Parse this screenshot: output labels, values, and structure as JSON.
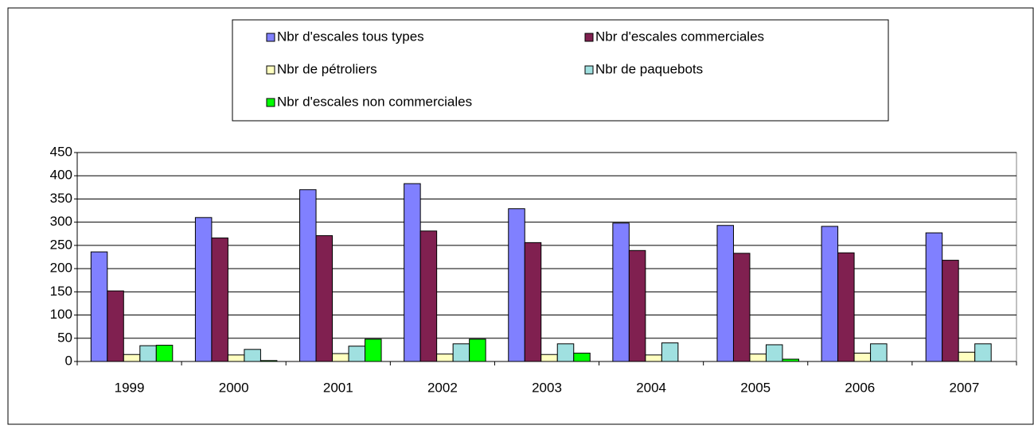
{
  "chart_data": {
    "type": "bar",
    "categories": [
      "1999",
      "2000",
      "2001",
      "2002",
      "2003",
      "2004",
      "2005",
      "2006",
      "2007"
    ],
    "series": [
      {
        "name": "Nbr d'escales tous types",
        "color": "#8080ff",
        "values": [
          236,
          310,
          370,
          383,
          329,
          298,
          293,
          291,
          277
        ]
      },
      {
        "name": "Nbr d'escales commerciales",
        "color": "#802050",
        "values": [
          152,
          266,
          271,
          281,
          256,
          239,
          233,
          234,
          218
        ]
      },
      {
        "name": "Nbr de pétroliers",
        "color": "#ffffc0",
        "values": [
          15,
          14,
          17,
          16,
          15,
          14,
          16,
          18,
          20
        ]
      },
      {
        "name": "Nbr de paquebots",
        "color": "#a0e0e0",
        "values": [
          34,
          26,
          33,
          38,
          38,
          40,
          36,
          38,
          38
        ]
      },
      {
        "name": "Nbr d'escales non commerciales",
        "color": "#00ff00",
        "values": [
          35,
          2,
          48,
          48,
          18,
          0,
          5,
          0,
          0
        ]
      }
    ],
    "ylim": [
      0,
      450
    ],
    "yticks": [
      0,
      50,
      100,
      150,
      200,
      250,
      300,
      350,
      400,
      450
    ],
    "grid": true
  }
}
